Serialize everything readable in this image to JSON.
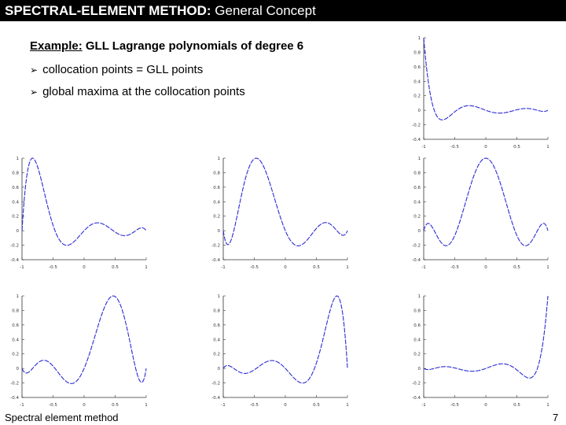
{
  "header": {
    "title_bold": "SPECTRAL-ELEMENT METHOD:",
    "title_rest": " General Concept"
  },
  "example": {
    "label": "Example:",
    "text": " GLL Lagrange polynomials of degree 6"
  },
  "bullets": [
    {
      "arrow_icon": "arrow-bullet-icon",
      "text": "collocation points = GLL points"
    },
    {
      "arrow_icon": "arrow-bullet-icon",
      "text": "global maxima at the collocation points"
    }
  ],
  "footer": {
    "left": "Spectral element method",
    "page": "7"
  },
  "colors": {
    "header_bg": "#000000",
    "curve": "#2b2bd6"
  },
  "chart_data": [
    {
      "type": "line",
      "xlim": [
        -1,
        1
      ],
      "ylim": [
        -0.4,
        1
      ],
      "xticks": [
        "-1",
        "-0.5",
        "0",
        "0.5",
        "1"
      ],
      "yticks": [
        "1",
        "0.8",
        "0.6",
        "0.4",
        "0.2",
        "0",
        "-0.2",
        "-0.4"
      ],
      "series": [
        {
          "node_index": 0
        }
      ]
    },
    {
      "type": "line",
      "xlim": [
        -1,
        1
      ],
      "ylim": [
        -0.4,
        1
      ],
      "xticks": [
        "-1",
        "-0.5",
        "0",
        "0.5",
        "1"
      ],
      "yticks": [
        "1",
        "0.8",
        "0.6",
        "0.4",
        "0.2",
        "0",
        "-0.2",
        "-0.4"
      ],
      "series": [
        {
          "node_index": 1
        }
      ]
    },
    {
      "type": "line",
      "xlim": [
        -1,
        1
      ],
      "ylim": [
        -0.4,
        1
      ],
      "xticks": [
        "-1",
        "-0.5",
        "0",
        "0.5",
        "1"
      ],
      "yticks": [
        "1",
        "0.8",
        "0.6",
        "0.4",
        "0.2",
        "0",
        "-0.2",
        "-0.4"
      ],
      "series": [
        {
          "node_index": 2
        }
      ]
    },
    {
      "type": "line",
      "xlim": [
        -1,
        1
      ],
      "ylim": [
        -0.4,
        1
      ],
      "xticks": [
        "-1",
        "-0.5",
        "0",
        "0.5",
        "1"
      ],
      "yticks": [
        "1",
        "0.8",
        "0.6",
        "0.4",
        "0.2",
        "0",
        "-0.2",
        "-0.4"
      ],
      "series": [
        {
          "node_index": 3
        }
      ]
    },
    {
      "type": "line",
      "xlim": [
        -1,
        1
      ],
      "ylim": [
        -0.4,
        1
      ],
      "xticks": [
        "-1",
        "-0.5",
        "0",
        "0.5",
        "1"
      ],
      "yticks": [
        "1",
        "0.8",
        "0.6",
        "0.4",
        "0.2",
        "0",
        "-0.2",
        "-0.4"
      ],
      "series": [
        {
          "node_index": 4
        }
      ]
    },
    {
      "type": "line",
      "xlim": [
        -1,
        1
      ],
      "ylim": [
        -0.4,
        1
      ],
      "xticks": [
        "-1",
        "-0.5",
        "0",
        "0.5",
        "1"
      ],
      "yticks": [
        "1",
        "0.8",
        "0.6",
        "0.4",
        "0.2",
        "0",
        "-0.2",
        "-0.4"
      ],
      "series": [
        {
          "node_index": 5
        }
      ]
    },
    {
      "type": "line",
      "xlim": [
        -1,
        1
      ],
      "ylim": [
        -0.4,
        1
      ],
      "xticks": [
        "-1",
        "-0.5",
        "0",
        "0.5",
        "1"
      ],
      "yticks": [
        "1",
        "0.8",
        "0.6",
        "0.4",
        "0.2",
        "0",
        "-0.2",
        "-0.4"
      ],
      "series": [
        {
          "node_index": 6
        }
      ]
    }
  ]
}
